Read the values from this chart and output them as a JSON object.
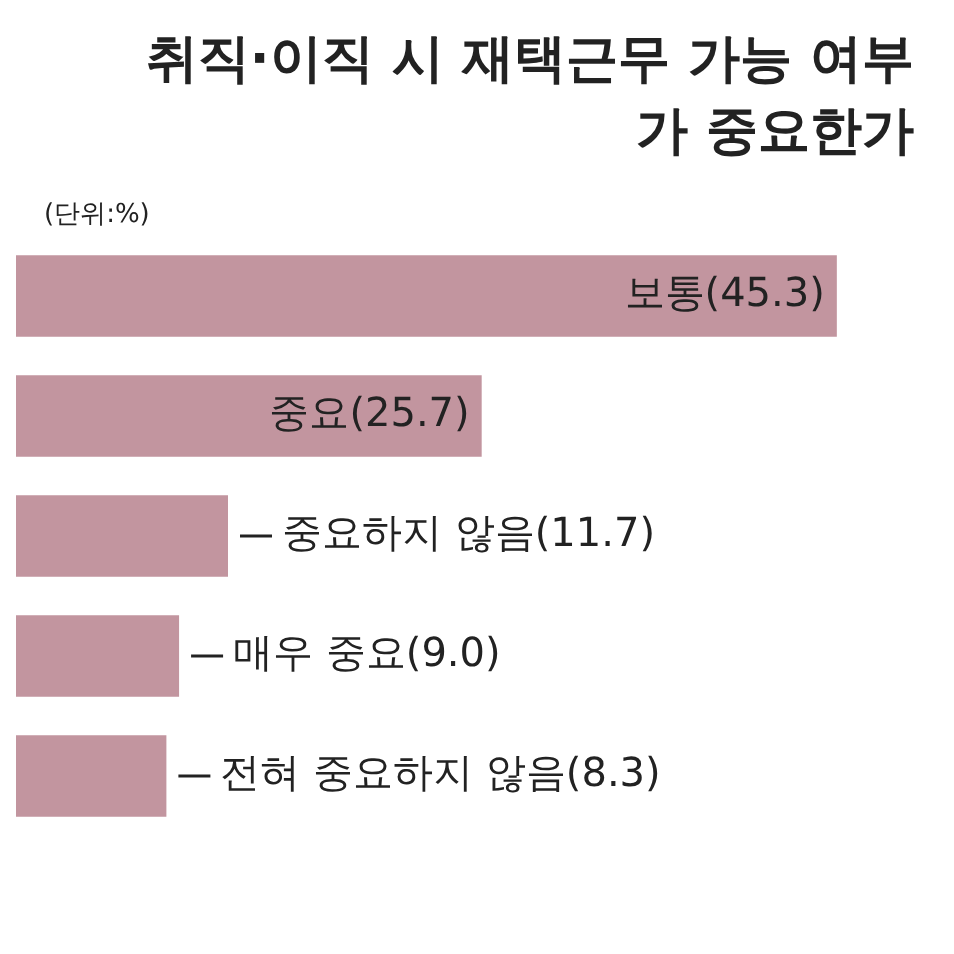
{
  "chart_data": {
    "type": "bar",
    "orientation": "horizontal",
    "title": "취직·이직 시 재택근무 가능 여부가 중요한가",
    "annotations": [
      "(단위:%)"
    ],
    "categories": [
      null,
      null,
      null,
      null,
      null
    ],
    "values": [
      45.3,
      25.7,
      11.7,
      9.0,
      8.3
    ],
    "value_labels": [
      "보통(45.3)",
      "중요(25.7)",
      "중요하지 않음(11.7)",
      "매우 중요(9.0)",
      "전혀 중요하지 않음(8.3)"
    ],
    "color": "#c2959f"
  }
}
